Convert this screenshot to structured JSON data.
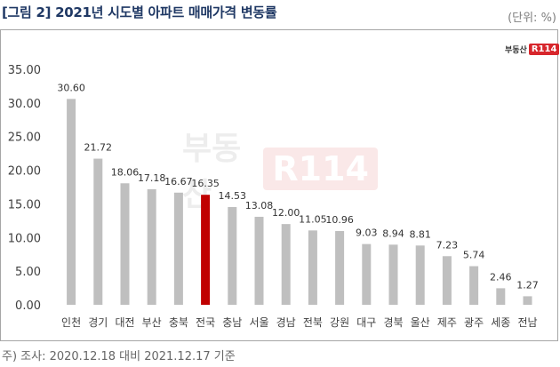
{
  "title": "[그림 2] 2021년 시도별 아파트 매매가격 변동률",
  "unit_label": "(단위: %)",
  "logo": {
    "text": "부동산",
    "mark": "R114"
  },
  "note": "주) 조사: 2020.12.18 대비 2021.12.17 기준",
  "colors": {
    "bar": "#bfbfbf",
    "highlight": "#c00000",
    "title": "#1f3864"
  },
  "chart_data": {
    "type": "bar",
    "title": "[그림 2] 2021년 시도별 아파트 매매가격 변동률",
    "xlabel": "",
    "ylabel": "",
    "categories": [
      "인천",
      "경기",
      "대전",
      "부산",
      "충북",
      "전국",
      "충남",
      "서울",
      "경남",
      "전북",
      "강원",
      "대구",
      "경북",
      "울산",
      "제주",
      "광주",
      "세종",
      "전남"
    ],
    "values": [
      30.6,
      21.72,
      18.06,
      17.18,
      16.67,
      16.35,
      14.53,
      13.08,
      12.0,
      11.05,
      10.96,
      9.03,
      8.94,
      8.81,
      7.23,
      5.74,
      2.46,
      1.27
    ],
    "value_labels": [
      "30.60",
      "21.72",
      "18.06",
      "17.18",
      "16.67",
      "16.35",
      "14.53",
      "13.08",
      "12.00",
      "11.05",
      "10.96",
      "9.03",
      "8.94",
      "8.81",
      "7.23",
      "5.74",
      "2.46",
      "1.27"
    ],
    "highlight": "전국",
    "ylim": [
      0,
      35
    ],
    "yticks": [
      "0.00",
      "5.00",
      "10.00",
      "15.00",
      "20.00",
      "25.00",
      "30.00",
      "35.00"
    ],
    "grid": false,
    "legend": "none"
  }
}
